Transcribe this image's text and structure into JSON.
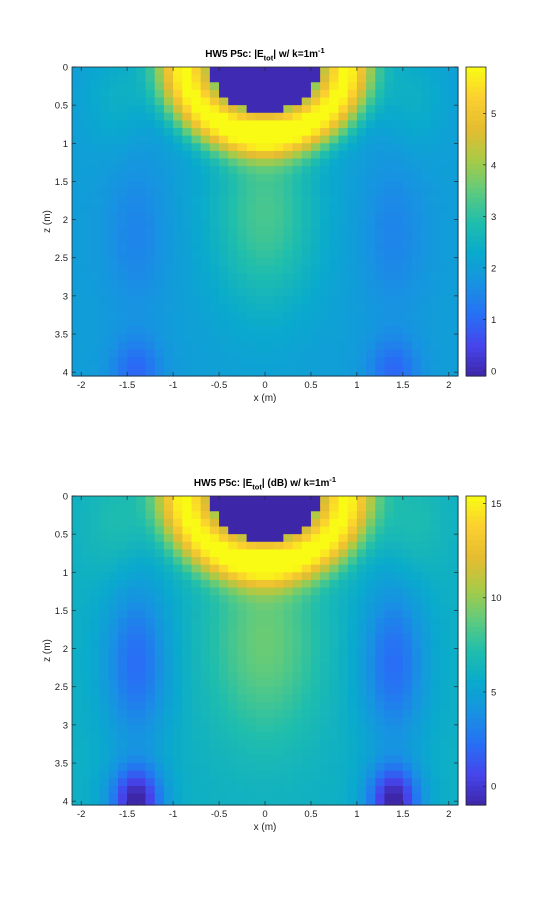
{
  "chart_data": [
    {
      "type": "heatmap",
      "title": "HW5 P5c: |E_tot| w/ k=1m^-1",
      "title_parts": {
        "pre": "HW5 P5c: |E",
        "sub": "tot",
        "mid": "| w/ k=1m",
        "sup": "-1"
      },
      "xlabel": "x (m)",
      "ylabel": "z (m)",
      "xlim": [
        -2.1,
        2.1
      ],
      "ylim": [
        0,
        4.05
      ],
      "y_reversed": true,
      "x_ticks": [
        -2,
        -1.5,
        -1,
        -0.5,
        0,
        0.5,
        1,
        1.5,
        2
      ],
      "x_tick_labels": [
        "-2",
        "-1.5",
        "-1",
        "-0.5",
        "0",
        "0.5",
        "1",
        "1.5",
        "2"
      ],
      "y_ticks": [
        0,
        0.5,
        1,
        1.5,
        2,
        2.5,
        3,
        3.5,
        4
      ],
      "y_tick_labels": [
        "0",
        "0.5",
        "1",
        "1.5",
        "2",
        "2.5",
        "3",
        "3.5",
        "4"
      ],
      "colormap": "parula",
      "clim": [
        -0.1,
        5.9
      ],
      "colorbar_ticks": [
        0,
        1,
        2,
        3,
        4,
        5
      ],
      "colorbar_tick_labels": [
        "0",
        "1",
        "2",
        "3",
        "4",
        "5"
      ],
      "grid": false,
      "cell_size_m": 0.1,
      "scatterer": {
        "shape": "circle",
        "center_x": 0,
        "center_z": 0,
        "radius": 0.6,
        "value": 0
      },
      "peak_value_at_rim": 5.9,
      "background_value": 2.0,
      "side_minima": [
        {
          "x": -1.4,
          "z": 4.0,
          "value": 1.0
        },
        {
          "x": 1.4,
          "z": 4.0,
          "value": 1.0
        }
      ]
    },
    {
      "type": "heatmap",
      "title": "HW5 P5c: |E_tot| (dB) w/ k=1m^-1",
      "title_parts": {
        "pre": "HW5 P5c: |E",
        "sub": "tot",
        "mid": "| (dB) w/ k=1m",
        "sup": "-1"
      },
      "xlabel": "x (m)",
      "ylabel": "z (m)",
      "xlim": [
        -2.1,
        2.1
      ],
      "ylim": [
        0,
        4.05
      ],
      "y_reversed": true,
      "x_ticks": [
        -2,
        -1.5,
        -1,
        -0.5,
        0,
        0.5,
        1,
        1.5,
        2
      ],
      "x_tick_labels": [
        "-2",
        "-1.5",
        "-1",
        "-0.5",
        "0",
        "0.5",
        "1",
        "1.5",
        "2"
      ],
      "y_ticks": [
        0,
        0.5,
        1,
        1.5,
        2,
        2.5,
        3,
        3.5,
        4
      ],
      "y_tick_labels": [
        "0",
        "0.5",
        "1",
        "1.5",
        "2",
        "2.5",
        "3",
        "3.5",
        "4"
      ],
      "colormap": "parula",
      "clim": [
        -1,
        15.4
      ],
      "colorbar_ticks": [
        0,
        5,
        10,
        15
      ],
      "colorbar_tick_labels": [
        "0",
        "5",
        "10",
        "15"
      ],
      "grid": false,
      "cell_size_m": 0.1,
      "scatterer": {
        "shape": "circle",
        "center_x": 0,
        "center_z": 0,
        "radius": 0.6,
        "value": -1
      },
      "peak_value_at_rim": 15.4,
      "background_value": 6.0,
      "side_minima": [
        {
          "x": -1.4,
          "z": 4.0,
          "value": -1.0
        },
        {
          "x": 1.4,
          "z": 4.0,
          "value": -1.0
        }
      ]
    }
  ]
}
